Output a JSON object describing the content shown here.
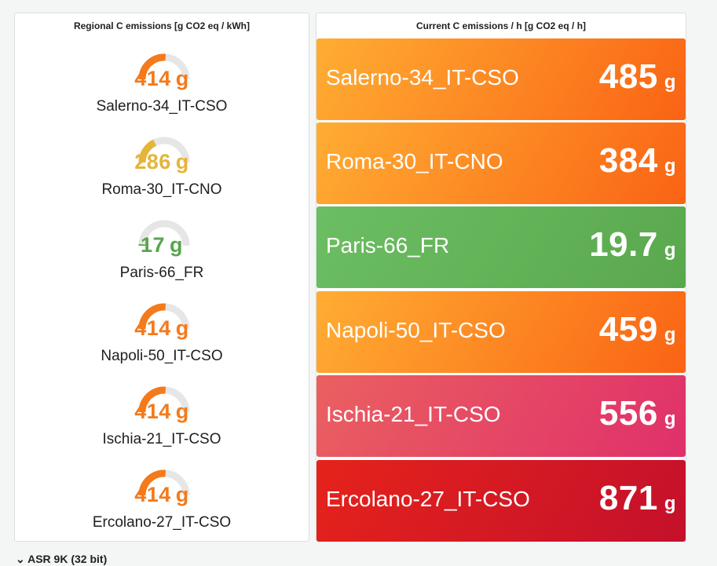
{
  "left_panel": {
    "title": "Regional C emissions [g CO2 eq / kWh]",
    "gauges": [
      {
        "label": "Salerno-34_IT-CSO",
        "value": "414",
        "unit": "g",
        "fraction": 0.52,
        "color": "#f47a1b"
      },
      {
        "label": "Roma-30_IT-CNO",
        "value": "286",
        "unit": "g",
        "fraction": 0.36,
        "color": "#e5b53a"
      },
      {
        "label": "Paris-66_FR",
        "value": "17",
        "unit": "g",
        "fraction": 0.02,
        "color": "#56a64b"
      },
      {
        "label": "Napoli-50_IT-CSO",
        "value": "414",
        "unit": "g",
        "fraction": 0.52,
        "color": "#f47a1b"
      },
      {
        "label": "Ischia-21_IT-CSO",
        "value": "414",
        "unit": "g",
        "fraction": 0.52,
        "color": "#f47a1b"
      },
      {
        "label": "Ercolano-27_IT-CSO",
        "value": "414",
        "unit": "g",
        "fraction": 0.52,
        "color": "#f47a1b"
      }
    ]
  },
  "right_panel": {
    "title": "Current C emissions / h [g CO2 eq / h]",
    "stats": [
      {
        "label": "Salerno-34_IT-CSO",
        "value": "485",
        "unit": "g",
        "color_start": "#ffad33",
        "color_end": "#fa6314"
      },
      {
        "label": "Roma-30_IT-CNO",
        "value": "384",
        "unit": "g",
        "color_start": "#ffad33",
        "color_end": "#fa6314"
      },
      {
        "label": "Paris-66_FR",
        "value": "19.7",
        "unit": "g",
        "color_start": "#6cbe62",
        "color_end": "#5aa84e"
      },
      {
        "label": "Napoli-50_IT-CSO",
        "value": "459",
        "unit": "g",
        "color_start": "#ffad33",
        "color_end": "#fa6314"
      },
      {
        "label": "Ischia-21_IT-CSO",
        "value": "556",
        "unit": "g",
        "color_start": "#ea6060",
        "color_end": "#e0306a"
      },
      {
        "label": "Ercolano-27_IT-CSO",
        "value": "871",
        "unit": "g",
        "color_start": "#e5231b",
        "color_end": "#c4102b"
      }
    ]
  },
  "bottom_row": {
    "label": "ASR 9K (32 bit)",
    "icon": "chevron-down-icon"
  }
}
